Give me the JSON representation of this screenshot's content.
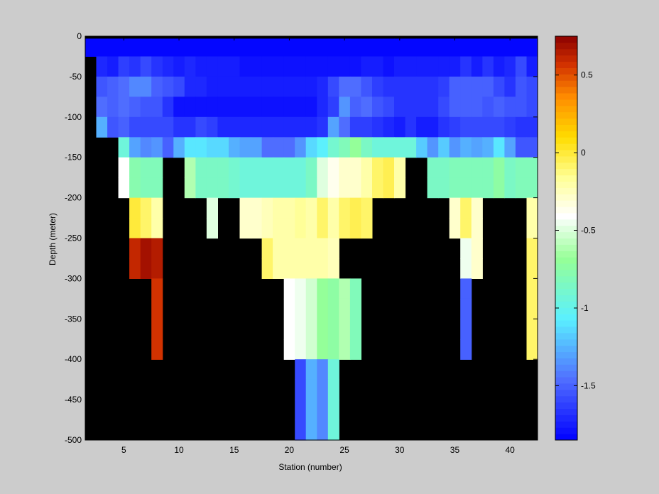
{
  "chart_data": {
    "type": "heatmap",
    "title": "",
    "xlabel": "Station (number)",
    "ylabel": "Depth (meter)",
    "xlim": [
      1.5,
      42.5
    ],
    "ylim": [
      -500,
      0
    ],
    "x_ticks": [
      5,
      10,
      15,
      20,
      25,
      30,
      35,
      40
    ],
    "y_ticks": [
      0,
      -50,
      -100,
      -150,
      -200,
      -250,
      -300,
      -350,
      -400,
      -450,
      -500
    ],
    "colorbar": {
      "range": [
        -1.85,
        0.75
      ],
      "ticks": [
        0.5,
        0,
        -0.5,
        -1,
        -1.5
      ],
      "colormap": "jet-white-center",
      "levels": 64
    },
    "background_color": "#000000",
    "x_first_station": 2,
    "depth_layers": [
      [
        -3,
        -25
      ],
      [
        -25,
        -50
      ],
      [
        -50,
        -75
      ],
      [
        -75,
        -100
      ],
      [
        -100,
        -125
      ],
      [
        -125,
        -150
      ],
      [
        -150,
        -175
      ],
      [
        -175,
        -200
      ],
      [
        -200,
        -225
      ],
      [
        -225,
        -250
      ],
      [
        -250,
        -275
      ],
      [
        -275,
        -300
      ],
      [
        -300,
        -325
      ],
      [
        -325,
        -350
      ],
      [
        -350,
        -375
      ],
      [
        -375,
        -400
      ],
      [
        -400,
        -425
      ],
      [
        -425,
        -450
      ],
      [
        -450,
        -475
      ],
      [
        -475,
        -500
      ]
    ],
    "values": [
      [
        -1.84,
        -1.84,
        -1.84,
        -1.84,
        -1.84,
        -1.84,
        -1.84,
        -1.84,
        -1.84,
        -1.84,
        -1.84,
        -1.84,
        -1.84,
        -1.84,
        -1.84,
        -1.84,
        -1.84,
        -1.84,
        -1.84,
        -1.84,
        -1.84,
        -1.84,
        -1.84,
        -1.84,
        -1.84,
        -1.84,
        -1.84,
        -1.84,
        -1.84,
        -1.84,
        -1.84,
        -1.84,
        -1.84,
        -1.84,
        -1.84,
        -1.84,
        -1.84,
        -1.84,
        -1.84,
        -1.84,
        -1.84
      ],
      [
        null,
        -1.7,
        -1.74,
        -1.62,
        -1.66,
        -1.6,
        -1.66,
        -1.72,
        -1.74,
        -1.72,
        -1.74,
        -1.74,
        -1.74,
        -1.74,
        -1.8,
        -1.8,
        -1.8,
        -1.8,
        -1.8,
        -1.8,
        -1.8,
        -1.8,
        -1.8,
        -1.8,
        -1.8,
        -1.74,
        -1.74,
        -1.8,
        -1.74,
        -1.74,
        -1.74,
        -1.74,
        -1.74,
        -1.74,
        -1.66,
        -1.74,
        -1.66,
        -1.74,
        -1.72,
        -1.6,
        -1.74
      ],
      [
        null,
        -1.55,
        -1.5,
        -1.45,
        -1.4,
        -1.4,
        -1.5,
        -1.55,
        -1.58,
        -1.72,
        -1.72,
        -1.75,
        -1.75,
        -1.75,
        -1.75,
        -1.75,
        -1.75,
        -1.75,
        -1.75,
        -1.75,
        -1.75,
        -1.72,
        -1.58,
        -1.48,
        -1.45,
        -1.55,
        -1.62,
        -1.66,
        -1.66,
        -1.66,
        -1.66,
        -1.66,
        -1.62,
        -1.5,
        -1.5,
        -1.5,
        -1.52,
        -1.58,
        -1.65,
        -1.55,
        -1.6
      ],
      [
        null,
        -1.45,
        -1.5,
        -1.45,
        -1.5,
        -1.55,
        -1.55,
        -1.68,
        -1.78,
        -1.78,
        -1.78,
        -1.78,
        -1.78,
        -1.78,
        -1.78,
        -1.78,
        -1.78,
        -1.78,
        -1.78,
        -1.78,
        -1.78,
        -1.72,
        -1.62,
        -1.35,
        -1.5,
        -1.45,
        -1.55,
        -1.6,
        -1.65,
        -1.65,
        -1.66,
        -1.66,
        -1.6,
        -1.52,
        -1.5,
        -1.52,
        -1.55,
        -1.52,
        -1.55,
        -1.55,
        -1.6
      ],
      [
        null,
        -1.25,
        -1.55,
        -1.5,
        -1.58,
        -1.58,
        -1.6,
        -1.58,
        -1.68,
        -1.66,
        -1.6,
        -1.62,
        -1.72,
        -1.72,
        -1.72,
        -1.72,
        -1.72,
        -1.72,
        -1.72,
        -1.72,
        -1.72,
        -1.66,
        -1.3,
        -1.45,
        -1.62,
        -1.62,
        -1.66,
        -1.72,
        -1.75,
        -1.66,
        -1.75,
        -1.75,
        -1.66,
        -1.62,
        -1.6,
        -1.6,
        -1.58,
        -1.58,
        -1.62,
        -1.66,
        -1.66
      ],
      [
        null,
        null,
        null,
        -0.95,
        -1.3,
        -1.4,
        -1.35,
        -1.5,
        -1.25,
        -1.1,
        -1.1,
        -1.15,
        -1.15,
        -1.25,
        -1.3,
        -1.3,
        -1.45,
        -1.45,
        -1.45,
        -1.35,
        -1.15,
        -1.05,
        -0.9,
        -0.8,
        -0.7,
        -0.85,
        -0.95,
        -0.95,
        -0.95,
        -0.95,
        -1.2,
        -1.35,
        -1.2,
        -1.35,
        -1.25,
        -1.3,
        -1.25,
        -1.1,
        -1.3,
        -1.55,
        -1.55
      ],
      [
        null,
        null,
        null,
        -0.4,
        -0.78,
        -0.82,
        -0.82,
        null,
        null,
        -0.62,
        -0.85,
        -0.85,
        -0.85,
        -0.9,
        -0.95,
        -0.95,
        -0.95,
        -0.95,
        -0.95,
        -0.95,
        -0.85,
        -0.5,
        -0.35,
        -0.3,
        -0.3,
        -0.2,
        -0.1,
        -0.05,
        -0.2,
        null,
        null,
        -0.85,
        -0.85,
        -0.82,
        -0.82,
        -0.82,
        -0.82,
        -0.72,
        -0.85,
        -0.82,
        -0.82
      ],
      [
        null,
        null,
        null,
        -0.4,
        -0.78,
        -0.82,
        -0.82,
        null,
        null,
        -0.62,
        -0.85,
        -0.85,
        -0.85,
        -0.9,
        -0.95,
        -0.95,
        -0.95,
        -0.95,
        -0.95,
        -0.95,
        -0.85,
        -0.5,
        -0.35,
        -0.3,
        -0.3,
        -0.2,
        -0.1,
        -0.05,
        -0.2,
        null,
        null,
        -0.85,
        -0.85,
        -0.82,
        -0.82,
        -0.82,
        -0.82,
        -0.72,
        -0.85,
        -0.82,
        -0.82
      ],
      [
        null,
        null,
        null,
        null,
        0.0,
        -0.1,
        -0.2,
        null,
        null,
        null,
        null,
        -0.5,
        null,
        null,
        -0.3,
        -0.3,
        -0.25,
        -0.2,
        -0.2,
        -0.15,
        -0.2,
        -0.1,
        -0.2,
        -0.1,
        -0.05,
        -0.1,
        null,
        null,
        null,
        null,
        null,
        null,
        null,
        -0.3,
        -0.1,
        -0.3,
        null,
        null,
        null,
        null,
        -0.2
      ],
      [
        null,
        null,
        null,
        null,
        0.0,
        -0.1,
        -0.2,
        null,
        null,
        null,
        null,
        -0.5,
        null,
        null,
        -0.3,
        -0.3,
        -0.25,
        -0.2,
        -0.2,
        -0.15,
        -0.2,
        -0.1,
        -0.2,
        -0.1,
        -0.05,
        -0.1,
        null,
        null,
        null,
        null,
        null,
        null,
        null,
        -0.3,
        -0.1,
        -0.3,
        null,
        null,
        null,
        null,
        -0.2
      ],
      [
        null,
        null,
        null,
        null,
        0.6,
        0.7,
        0.65,
        null,
        null,
        null,
        null,
        null,
        null,
        null,
        null,
        null,
        -0.1,
        -0.2,
        -0.2,
        -0.2,
        -0.2,
        -0.2,
        -0.25,
        null,
        null,
        null,
        null,
        null,
        null,
        null,
        null,
        null,
        null,
        null,
        -0.45,
        -0.3,
        null,
        null,
        null,
        null,
        -0.1
      ],
      [
        null,
        null,
        null,
        null,
        0.6,
        0.7,
        0.65,
        null,
        null,
        null,
        null,
        null,
        null,
        null,
        null,
        null,
        -0.1,
        -0.2,
        -0.2,
        -0.2,
        -0.2,
        -0.2,
        -0.25,
        null,
        null,
        null,
        null,
        null,
        null,
        null,
        null,
        null,
        null,
        null,
        -0.45,
        -0.3,
        null,
        null,
        null,
        null,
        -0.1
      ],
      [
        null,
        null,
        null,
        null,
        null,
        null,
        0.55,
        null,
        null,
        null,
        null,
        null,
        null,
        null,
        null,
        null,
        null,
        null,
        -0.4,
        -0.45,
        -0.55,
        -0.7,
        -0.75,
        -0.6,
        -0.8,
        null,
        null,
        null,
        null,
        null,
        null,
        null,
        null,
        null,
        -1.5,
        null,
        null,
        null,
        null,
        null,
        -0.1
      ],
      [
        null,
        null,
        null,
        null,
        null,
        null,
        0.55,
        null,
        null,
        null,
        null,
        null,
        null,
        null,
        null,
        null,
        null,
        null,
        -0.4,
        -0.45,
        -0.55,
        -0.7,
        -0.75,
        -0.6,
        -0.8,
        null,
        null,
        null,
        null,
        null,
        null,
        null,
        null,
        null,
        -1.5,
        null,
        null,
        null,
        null,
        null,
        -0.1
      ],
      [
        null,
        null,
        null,
        null,
        null,
        null,
        0.55,
        null,
        null,
        null,
        null,
        null,
        null,
        null,
        null,
        null,
        null,
        null,
        -0.4,
        -0.45,
        -0.55,
        -0.7,
        -0.75,
        -0.6,
        -0.8,
        null,
        null,
        null,
        null,
        null,
        null,
        null,
        null,
        null,
        -1.5,
        null,
        null,
        null,
        null,
        null,
        -0.1
      ],
      [
        null,
        null,
        null,
        null,
        null,
        null,
        0.55,
        null,
        null,
        null,
        null,
        null,
        null,
        null,
        null,
        null,
        null,
        null,
        -0.4,
        -0.45,
        -0.55,
        -0.7,
        -0.75,
        -0.6,
        -0.8,
        null,
        null,
        null,
        null,
        null,
        null,
        null,
        null,
        null,
        -1.5,
        null,
        null,
        null,
        null,
        null,
        -0.1
      ],
      [
        null,
        null,
        null,
        null,
        null,
        null,
        null,
        null,
        null,
        null,
        null,
        null,
        null,
        null,
        null,
        null,
        null,
        null,
        null,
        -1.6,
        -1.25,
        -1.4,
        -0.95,
        null,
        null,
        null,
        null,
        null,
        null,
        null,
        null,
        null,
        null,
        null,
        null,
        null,
        null,
        null,
        null,
        null,
        null
      ],
      [
        null,
        null,
        null,
        null,
        null,
        null,
        null,
        null,
        null,
        null,
        null,
        null,
        null,
        null,
        null,
        null,
        null,
        null,
        null,
        -1.6,
        -1.25,
        -1.4,
        -0.95,
        null,
        null,
        null,
        null,
        null,
        null,
        null,
        null,
        null,
        null,
        null,
        null,
        null,
        null,
        null,
        null,
        null,
        null
      ],
      [
        null,
        null,
        null,
        null,
        null,
        null,
        null,
        null,
        null,
        null,
        null,
        null,
        null,
        null,
        null,
        null,
        null,
        null,
        null,
        -1.6,
        -1.25,
        -1.4,
        -0.95,
        null,
        null,
        null,
        null,
        null,
        null,
        null,
        null,
        null,
        null,
        null,
        null,
        null,
        null,
        null,
        null,
        null,
        null
      ],
      [
        null,
        null,
        null,
        null,
        null,
        null,
        null,
        null,
        null,
        null,
        null,
        null,
        null,
        null,
        null,
        null,
        null,
        null,
        null,
        -1.6,
        -1.25,
        -1.4,
        -0.95,
        null,
        null,
        null,
        null,
        null,
        null,
        null,
        null,
        null,
        null,
        null,
        null,
        null,
        null,
        null,
        null,
        null,
        null
      ]
    ]
  }
}
